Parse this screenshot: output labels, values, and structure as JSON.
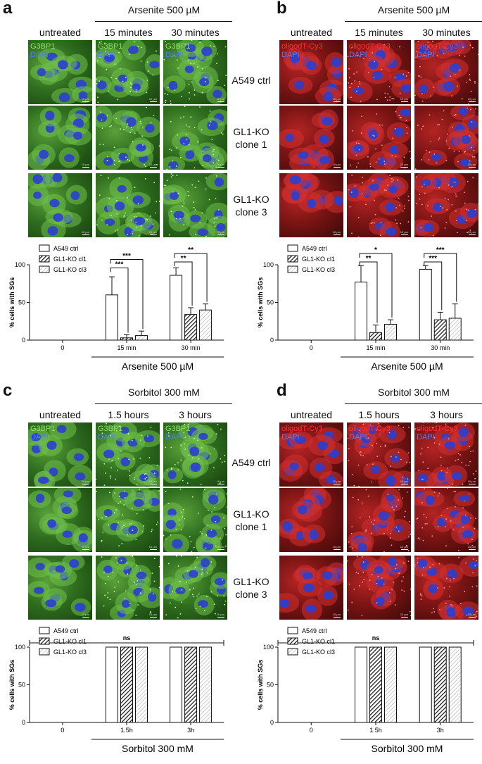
{
  "panels": [
    {
      "letter": "a",
      "treatment": "Arsenite 500 µM",
      "columns": [
        "untreated",
        "15 minutes",
        "30 minutes"
      ],
      "rows": [
        "A549 ctrl",
        "GL1-KO clone 1",
        "GL1-KO clone 3"
      ],
      "stain": [
        "G3BP1",
        "DAPI"
      ],
      "stain_colors": [
        "#8fe06a",
        "#4a7dff"
      ],
      "scale_label": "10 µm",
      "tile_color": "green",
      "chart_data": {
        "type": "bar",
        "ylabel": "% cells with SGs",
        "ylim": [
          0,
          100
        ],
        "yticks": [
          0,
          50,
          100
        ],
        "categories": [
          "0",
          "15 min",
          "30 min"
        ],
        "xlabel": "Arsenite 500 µM",
        "series": [
          {
            "name": "A549 ctrl",
            "values": [
              0,
              60,
              86
            ],
            "errors": [
              0,
              24,
              10
            ]
          },
          {
            "name": "GL1-KO cl1",
            "values": [
              0,
              3,
              34
            ],
            "errors": [
              0,
              4,
              9
            ]
          },
          {
            "name": "GL1-KO cl3",
            "values": [
              0,
              6,
              40
            ],
            "errors": [
              0,
              6,
              8
            ]
          }
        ],
        "significance": [
          {
            "group": 1,
            "from": 0,
            "to": 1,
            "label": "***"
          },
          {
            "group": 1,
            "from": 0,
            "to": 2,
            "label": "***"
          },
          {
            "group": 2,
            "from": 0,
            "to": 1,
            "label": "**"
          },
          {
            "group": 2,
            "from": 0,
            "to": 2,
            "label": "**"
          }
        ],
        "legend_position": "top-left"
      }
    },
    {
      "letter": "b",
      "treatment": "Arsenite 500 µM",
      "columns": [
        "untreated",
        "15 minutes",
        "30 minutes"
      ],
      "rows": [],
      "stain": [
        "oligodT-Cy3",
        "DAPI"
      ],
      "stain_colors": [
        "#ff3030",
        "#4a7dff"
      ],
      "scale_label": "10 µm",
      "tile_color": "red",
      "chart_data": {
        "type": "bar",
        "ylabel": "% cells with SGs",
        "ylim": [
          0,
          100
        ],
        "yticks": [
          0,
          50,
          100
        ],
        "categories": [
          "0",
          "15 min",
          "30 min"
        ],
        "xlabel": "Arsenite 500 µM",
        "series": [
          {
            "name": "A549 ctrl",
            "values": [
              0,
              77,
              94
            ],
            "errors": [
              0,
              22,
              5
            ]
          },
          {
            "name": "GL1-KO cl1",
            "values": [
              0,
              10,
              27
            ],
            "errors": [
              0,
              10,
              10
            ]
          },
          {
            "name": "GL1-KO cl3",
            "values": [
              0,
              21,
              29
            ],
            "errors": [
              0,
              6,
              19
            ]
          }
        ],
        "significance": [
          {
            "group": 1,
            "from": 0,
            "to": 1,
            "label": "**"
          },
          {
            "group": 1,
            "from": 0,
            "to": 2,
            "label": "*"
          },
          {
            "group": 2,
            "from": 0,
            "to": 1,
            "label": "***"
          },
          {
            "group": 2,
            "from": 0,
            "to": 2,
            "label": "***"
          }
        ],
        "legend_position": "top-left"
      }
    },
    {
      "letter": "c",
      "treatment": "Sorbitol 300 mM",
      "columns": [
        "untreated",
        "1.5 hours",
        "3 hours"
      ],
      "rows": [
        "A549 ctrl",
        "GL1-KO clone 1",
        "GL1-KO clone 3"
      ],
      "stain": [
        "G3BP1",
        "DAPI"
      ],
      "stain_colors": [
        "#8fe06a",
        "#4a7dff"
      ],
      "scale_label": "10 µm",
      "tile_color": "green",
      "chart_data": {
        "type": "bar",
        "ylabel": "% cells with SGs",
        "ylim": [
          0,
          100
        ],
        "yticks": [
          0,
          50,
          100
        ],
        "categories": [
          "0",
          "1.5h",
          "3h"
        ],
        "xlabel": "Sorbitol 300 mM",
        "series": [
          {
            "name": "A549 ctrl",
            "values": [
              0,
              100,
              100
            ],
            "errors": [
              0,
              0,
              0
            ]
          },
          {
            "name": "GL1-KO cl1",
            "values": [
              0,
              100,
              100
            ],
            "errors": [
              0,
              0,
              0
            ]
          },
          {
            "name": "GL1-KO cl3",
            "values": [
              0,
              100,
              100
            ],
            "errors": [
              0,
              0,
              0
            ]
          }
        ],
        "ns_label": "ns",
        "legend_position": "top-left"
      }
    },
    {
      "letter": "d",
      "treatment": "Sorbitol 300 mM",
      "columns": [
        "untreated",
        "1.5 hours",
        "3 hours"
      ],
      "rows": [],
      "stain": [
        "oligodT-Cy3",
        "DAPI"
      ],
      "stain_colors": [
        "#ff3030",
        "#4a7dff"
      ],
      "scale_label": "10 µm",
      "tile_color": "red",
      "chart_data": {
        "type": "bar",
        "ylabel": "% cells with SGs",
        "ylim": [
          0,
          100
        ],
        "yticks": [
          0,
          50,
          100
        ],
        "categories": [
          "0",
          "1.5h",
          "3h"
        ],
        "xlabel": "Sorbitol 300 mM",
        "series": [
          {
            "name": "A549 ctrl",
            "values": [
              0,
              100,
              100
            ],
            "errors": [
              0,
              0,
              0
            ]
          },
          {
            "name": "GL1-KO cl1",
            "values": [
              0,
              100,
              100
            ],
            "errors": [
              0,
              0,
              0
            ]
          },
          {
            "name": "GL1-KO cl3",
            "values": [
              0,
              100,
              100
            ],
            "errors": [
              0,
              0,
              0
            ]
          }
        ],
        "ns_label": "ns",
        "legend_position": "top-left"
      }
    }
  ]
}
